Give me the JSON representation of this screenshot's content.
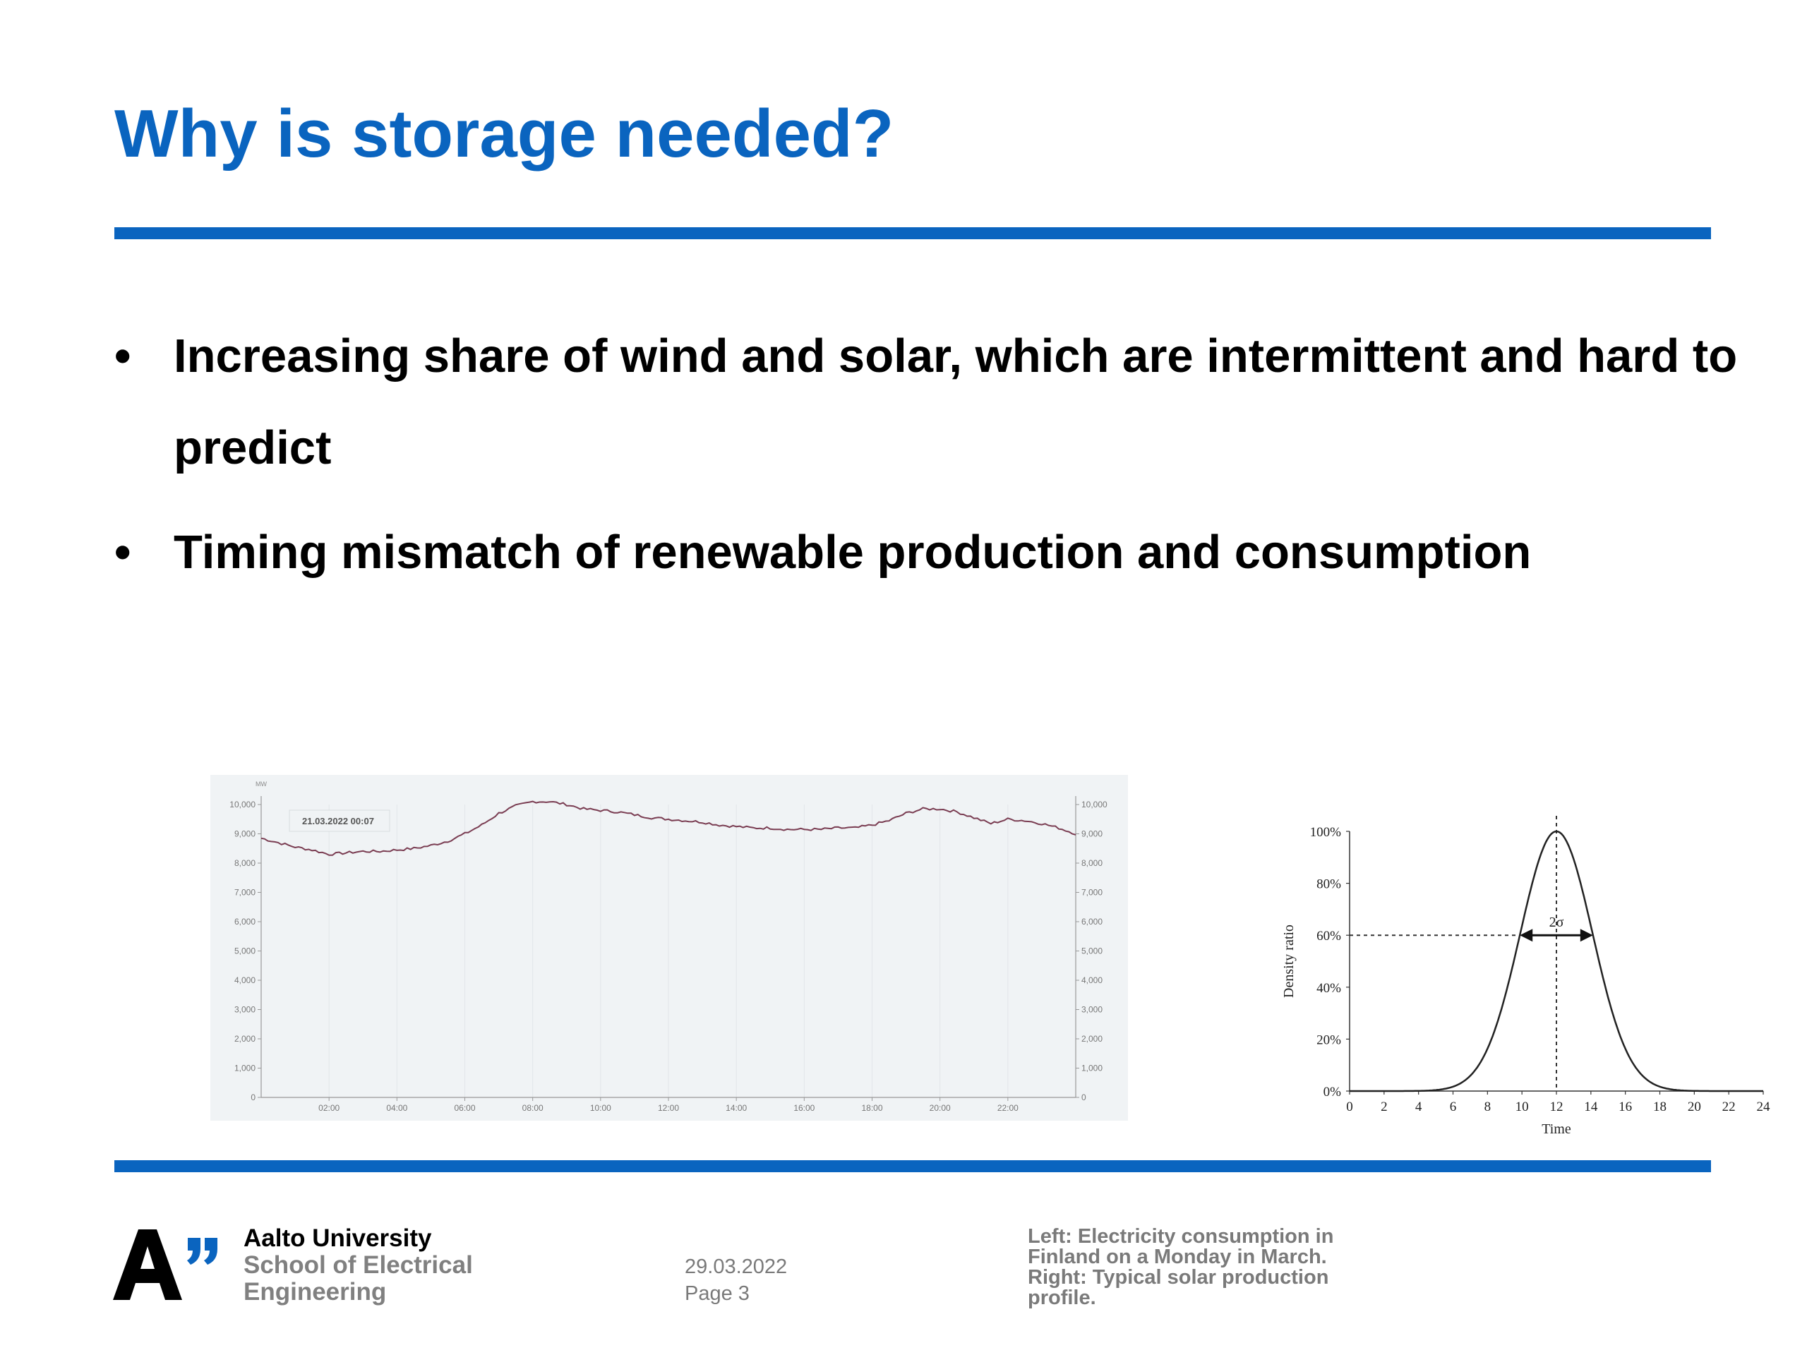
{
  "slide": {
    "title": "Why is storage needed?",
    "bullets": [
      "Increasing share of wind and solar, which are intermittent and hard to predict",
      "Timing mismatch of renewable production and consumption"
    ]
  },
  "footer": {
    "university": "Aalto University",
    "school_line1": "School of Electrical",
    "school_line2": "Engineering",
    "date": "29.03.2022",
    "page": "Page 3",
    "caption": "Left: Electricity consumption in Finland on a Monday in March. Right: Typical solar production profile."
  },
  "colors": {
    "accent": "#0a64bf",
    "consumption_line": "#7a3d52",
    "chart_bg": "#f0f3f5"
  },
  "chart_data": [
    {
      "type": "line",
      "unit_label": "MW",
      "timestamp_label": "21.03.2022 00:07",
      "x_ticks": [
        "02:00",
        "04:00",
        "06:00",
        "08:00",
        "10:00",
        "12:00",
        "14:00",
        "16:00",
        "18:00",
        "20:00",
        "22:00"
      ],
      "y_ticks": [
        "0",
        "1,000",
        "2,000",
        "3,000",
        "4,000",
        "5,000",
        "6,000",
        "7,000",
        "8,000",
        "9,000",
        "10,000"
      ],
      "y_ticks_right": [
        "0",
        "1,000",
        "2,000",
        "3,000",
        "4,000",
        "5,000",
        "6,000",
        "7,000",
        "8,000",
        "9,000",
        "10,000"
      ],
      "xlim": [
        0,
        24
      ],
      "ylim": [
        0,
        10000
      ],
      "grid": true,
      "x": [
        0,
        0.5,
        1,
        1.5,
        2,
        2.5,
        3,
        3.5,
        4,
        4.5,
        5,
        5.5,
        6,
        6.5,
        7,
        7.5,
        8,
        8.5,
        9,
        9.5,
        10,
        10.5,
        11,
        11.5,
        12,
        12.5,
        13,
        13.5,
        14,
        14.5,
        15,
        15.5,
        16,
        16.5,
        17,
        17.5,
        18,
        18.5,
        19,
        19.5,
        20,
        20.5,
        21,
        21.5,
        22,
        22.5,
        23,
        23.5,
        24
      ],
      "values": [
        8850,
        8700,
        8550,
        8450,
        8300,
        8350,
        8400,
        8400,
        8450,
        8500,
        8600,
        8750,
        9000,
        9300,
        9700,
        9950,
        10100,
        10100,
        10000,
        9850,
        9800,
        9750,
        9650,
        9550,
        9500,
        9450,
        9400,
        9300,
        9250,
        9200,
        9200,
        9150,
        9150,
        9150,
        9200,
        9200,
        9300,
        9450,
        9700,
        9850,
        9850,
        9750,
        9550,
        9350,
        9500,
        9450,
        9350,
        9200,
        9000
      ]
    },
    {
      "type": "line",
      "xlabel": "Time",
      "ylabel": "Density ratio",
      "x_ticks": [
        "0",
        "2",
        "4",
        "6",
        "8",
        "10",
        "12",
        "14",
        "16",
        "18",
        "20",
        "22",
        "24"
      ],
      "y_ticks": [
        "0%",
        "20%",
        "40%",
        "60%",
        "80%",
        "100%"
      ],
      "xlim": [
        0,
        24
      ],
      "ylim": [
        0,
        100
      ],
      "peak_x": 12,
      "sigma_hours": 2.1,
      "annotation": "2σ",
      "series": [
        {
          "x": [
            0,
            2,
            4,
            5,
            6,
            7,
            8,
            9,
            10,
            11,
            12,
            13,
            14,
            15,
            16,
            17,
            18,
            19,
            20,
            22,
            24
          ],
          "values": [
            0,
            0,
            0.1,
            0.6,
            2,
            5.8,
            16,
            36,
            64,
            89,
            100,
            89,
            64,
            36,
            16,
            5.8,
            2,
            0.6,
            0.1,
            0,
            0
          ]
        }
      ]
    }
  ]
}
